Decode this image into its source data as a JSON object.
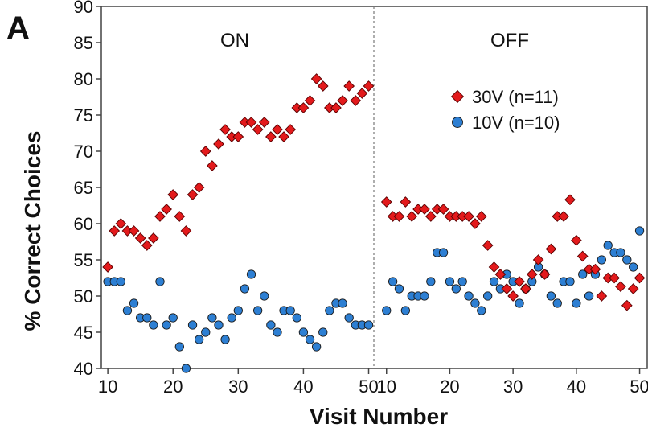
{
  "chart_data": {
    "type": "scatter",
    "panel_label": "A",
    "xlabel": "Visit Number",
    "ylabel": "% Correct Choices",
    "ylim": [
      40,
      90
    ],
    "yticks": [
      40,
      45,
      50,
      55,
      60,
      65,
      70,
      75,
      80,
      85,
      90
    ],
    "xticks": [
      10,
      20,
      30,
      40,
      50
    ],
    "grid": false,
    "legend_position": "upper-right of OFF panel",
    "panels": [
      {
        "title": "ON",
        "xlim": [
          9,
          50.8
        ],
        "series": [
          {
            "name": "30V (n=11)",
            "marker": "diamond",
            "color": "#e31a1c",
            "x": [
              10,
              11,
              12,
              13,
              14,
              15,
              16,
              17,
              18,
              19,
              20,
              21,
              22,
              23,
              24,
              25,
              26,
              27,
              28,
              29,
              30,
              31,
              32,
              33,
              34,
              35,
              36,
              37,
              38,
              39,
              40,
              41,
              42,
              43,
              44,
              45,
              46,
              47,
              48,
              49,
              50
            ],
            "y": [
              54,
              59,
              60,
              59,
              59,
              58,
              57,
              58,
              61,
              62,
              64,
              61,
              59,
              64,
              65,
              70,
              68,
              71,
              73,
              72,
              72,
              74,
              74,
              73,
              74,
              72,
              73,
              72,
              73,
              76,
              76,
              77,
              80,
              79,
              76,
              76,
              77,
              79,
              77,
              78,
              79
            ]
          },
          {
            "name": "10V (n=10)",
            "marker": "circle",
            "color": "#2d7fd3",
            "x": [
              10,
              11,
              12,
              13,
              14,
              15,
              16,
              17,
              18,
              19,
              20,
              21,
              22,
              23,
              24,
              25,
              26,
              27,
              28,
              29,
              30,
              31,
              32,
              33,
              34,
              35,
              36,
              37,
              38,
              39,
              40,
              41,
              42,
              43,
              44,
              45,
              46,
              47,
              48,
              49,
              50
            ],
            "y": [
              52,
              52,
              52,
              48,
              49,
              47,
              47,
              46,
              52,
              46,
              47,
              43,
              40,
              46,
              44,
              45,
              47,
              46,
              44,
              47,
              48,
              51,
              53,
              48,
              50,
              46,
              45,
              48,
              48,
              47,
              45,
              44,
              43,
              45,
              48,
              49,
              49,
              47,
              46,
              46,
              46
            ]
          }
        ]
      },
      {
        "title": "OFF",
        "xlim": [
          8,
          51.2
        ],
        "series": [
          {
            "name": "30V (n=11)",
            "marker": "diamond",
            "color": "#e31a1c",
            "x": [
              10,
              11,
              12,
              13,
              14,
              15,
              16,
              17,
              18,
              19,
              20,
              21,
              22,
              23,
              24,
              25,
              26,
              27,
              28,
              29,
              30,
              31,
              32,
              33,
              34,
              35,
              36,
              37,
              38,
              39,
              40,
              41,
              42,
              43,
              44,
              45,
              46,
              47,
              48,
              49,
              50
            ],
            "y": [
              63,
              61,
              61,
              63,
              61,
              62,
              62,
              61,
              62,
              62,
              61,
              61,
              61,
              61,
              60,
              61,
              57,
              54,
              53,
              51,
              50,
              52,
              51,
              53,
              55,
              53,
              56.5,
              61,
              61,
              63.3,
              57.7,
              55.5,
              53.7,
              53.7,
              50,
              52.5,
              52.5,
              51.3,
              48.7,
              51,
              52.5
            ]
          },
          {
            "name": "10V (n=10)",
            "marker": "circle",
            "color": "#2d7fd3",
            "x": [
              10,
              11,
              12,
              13,
              14,
              15,
              16,
              17,
              18,
              19,
              20,
              21,
              22,
              23,
              24,
              25,
              26,
              27,
              28,
              29,
              30,
              31,
              32,
              33,
              34,
              35,
              36,
              37,
              38,
              39,
              40,
              41,
              42,
              43,
              44,
              45,
              46,
              47,
              48,
              49,
              50
            ],
            "y": [
              48,
              52,
              51,
              48,
              50,
              50,
              50,
              52,
              56,
              56,
              52,
              51,
              52,
              50,
              49,
              48,
              50,
              52,
              51,
              53,
              52,
              49,
              51,
              52,
              54,
              53,
              50,
              49,
              52,
              52,
              49,
              53,
              50,
              53,
              55,
              57,
              56,
              56,
              55,
              54,
              59
            ]
          }
        ]
      }
    ]
  }
}
